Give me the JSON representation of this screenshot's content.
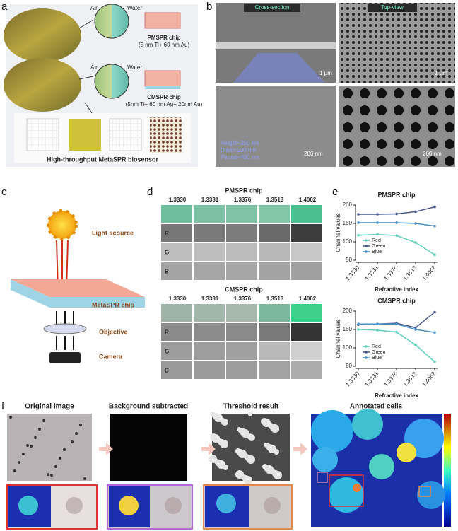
{
  "panels": {
    "a": {
      "label": "a",
      "air_1": "Air",
      "water_1": "Water",
      "chip_1": "PMSPR chip",
      "chip_1_spec": "(5 nm Ti+ 60 nm Au)",
      "air_2": "Air",
      "water_2": "Water",
      "chip_2": "CMSPR chip",
      "chip_2_spec": "(5nm Ti+ 60 nm Ag+ 20nm Au)",
      "caption": "High-throughput MetaSPR biosensor"
    },
    "b": {
      "label": "b",
      "cross_section": "Cross-section",
      "top_view": "Top-view",
      "scale_1": "1 μm",
      "scale_2": "1 μm",
      "height": "Height=350 nm",
      "diam": "Diam=200 nm",
      "period": "Period=400 nm",
      "scale_3": "200 nm",
      "scale_4": "200 nm"
    },
    "c": {
      "label": "c",
      "light": "Light scource",
      "chip": "MetaSPR chip",
      "objective": "Objective",
      "camera": "Camera"
    },
    "d": {
      "label": "d",
      "blocks": [
        {
          "title": "PMSPR chip",
          "columns": [
            "1.3330",
            "1.3331",
            "1.3376",
            "1.3513",
            "1.4062"
          ],
          "rows": [
            "R",
            "G",
            "B"
          ]
        },
        {
          "title": "CMSPR chip",
          "columns": [
            "1.3330",
            "1.3331",
            "1.3376",
            "1.3513",
            "1.4062"
          ],
          "rows": [
            "R",
            "G",
            "B"
          ]
        }
      ]
    },
    "e": {
      "label": "e"
    },
    "f": {
      "label": "f",
      "titles": [
        "Original image",
        "Background subtracted",
        "Threshold result",
        "Annotated cells"
      ]
    }
  },
  "chart_data": [
    {
      "type": "line",
      "title": "PMSPR chip",
      "x_label": "Refractive index",
      "y_label": "Channel values",
      "categories": [
        "1.3330",
        "1.3331",
        "1.3376",
        "1.3513",
        "1.4062"
      ],
      "ylim": [
        50,
        200
      ],
      "yticks": [
        50,
        100,
        150,
        200
      ],
      "legend": "lower left",
      "series": [
        {
          "name": "Red",
          "color": "#5fd0bd",
          "values": [
            118,
            120,
            117,
            98,
            65
          ]
        },
        {
          "name": "Green",
          "color": "#4b5a8c",
          "values": [
            175,
            175,
            176,
            182,
            195
          ]
        },
        {
          "name": "Blue",
          "color": "#4a90c4",
          "values": [
            152,
            152,
            152,
            150,
            143
          ]
        }
      ]
    },
    {
      "type": "line",
      "title": "CMSPR chip",
      "x_label": "Refractive index",
      "y_label": "Channel values",
      "categories": [
        "1.3330",
        "1.3331",
        "1.3376",
        "1.3513",
        "1.4062"
      ],
      "ylim": [
        50,
        200
      ],
      "yticks": [
        50,
        100,
        150,
        200
      ],
      "legend": "lower left",
      "series": [
        {
          "name": "Red",
          "color": "#5fd0bd",
          "values": [
            150,
            148,
            143,
            108,
            62
          ]
        },
        {
          "name": "Green",
          "color": "#4b5a8c",
          "values": [
            163,
            165,
            167,
            155,
            197
          ]
        },
        {
          "name": "Blue",
          "color": "#4a90c4",
          "values": [
            165,
            165,
            165,
            150,
            142
          ]
        }
      ]
    }
  ]
}
